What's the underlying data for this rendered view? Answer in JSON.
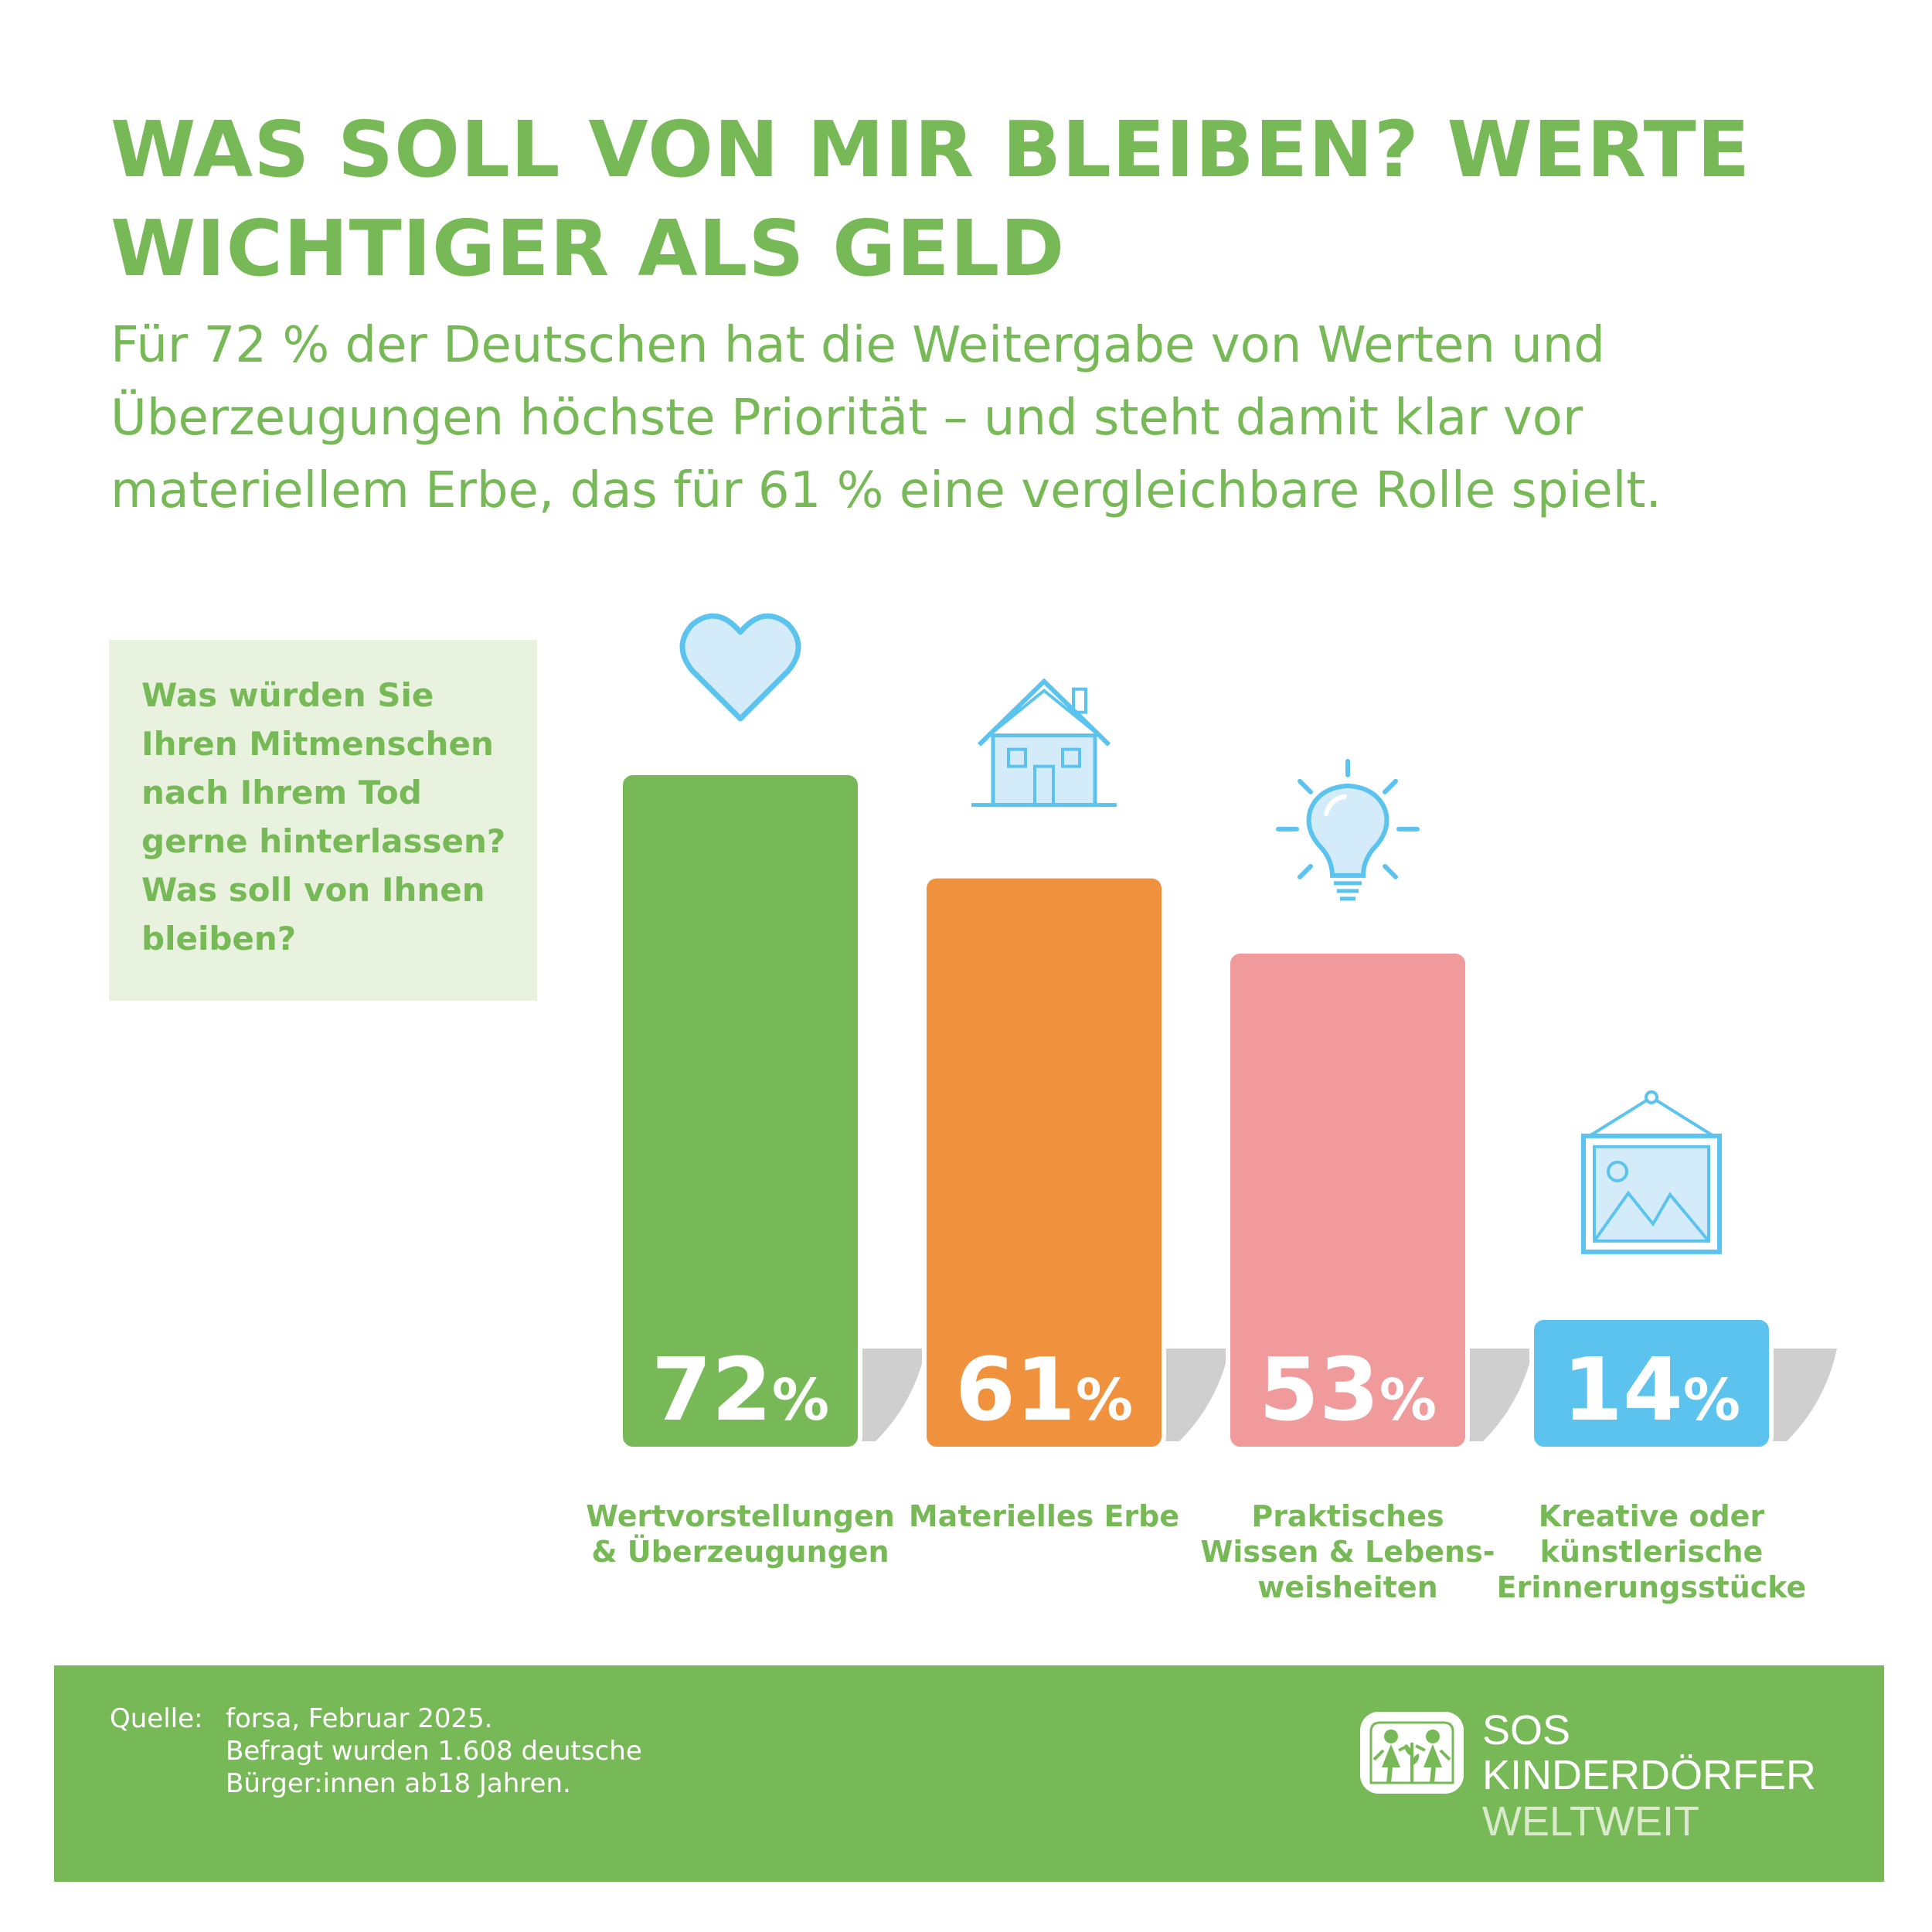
{
  "title": "WAS SOLL VON MIR BLEIBEN? WERTE\nWICHTIGER ALS GELD",
  "subtitle": "Für 72 % der Deutschen hat die Weitergabe von Werten und\nÜberzeugungen höchste Priorität – und steht damit klar vor\nmateriellem Erbe, das für 61 % eine vergleichbare Rolle spielt.",
  "question": "Was würden Sie\nIhren Mitmenschen\nnach Ihrem Tod\ngerne hinterlassen?\nWas soll von Ihnen\nbleiben?",
  "colors": {
    "brand_green": "#78b957",
    "question_bg": "#e8f2df",
    "icon_blue": "#5bc3ee",
    "icon_fill": "#d4ecfa",
    "shadow": "#cfcfcf"
  },
  "chart_data": {
    "type": "bar",
    "categories": [
      "Wertvorstellungen\n& Überzeugungen",
      "Materielles Erbe",
      "Praktisches\nWissen & Lebens-\nweisheiten",
      "Kreative oder\nkünstlerische\nErinnerungsstücke"
    ],
    "values": [
      72,
      61,
      53,
      14
    ],
    "value_labels": [
      "72",
      "61",
      "53",
      "14"
    ],
    "unit": "%",
    "bar_colors": [
      "#78b957",
      "#f0913e",
      "#f09a9c",
      "#5bc3ee"
    ],
    "icons": [
      "heart-icon",
      "house-icon",
      "lightbulb-icon",
      "picture-frame-icon"
    ],
    "ylim": [
      0,
      72
    ]
  },
  "footer": {
    "source_label": "Quelle:",
    "source_text": "forsa, Februar 2025.\nBefragt wurden 1.608 deutsche\nBürger:innen ab18 Jahren.",
    "logo_line1": "SOS",
    "logo_line2": "KINDERDÖRFER",
    "logo_line3": "WELTWEIT"
  }
}
